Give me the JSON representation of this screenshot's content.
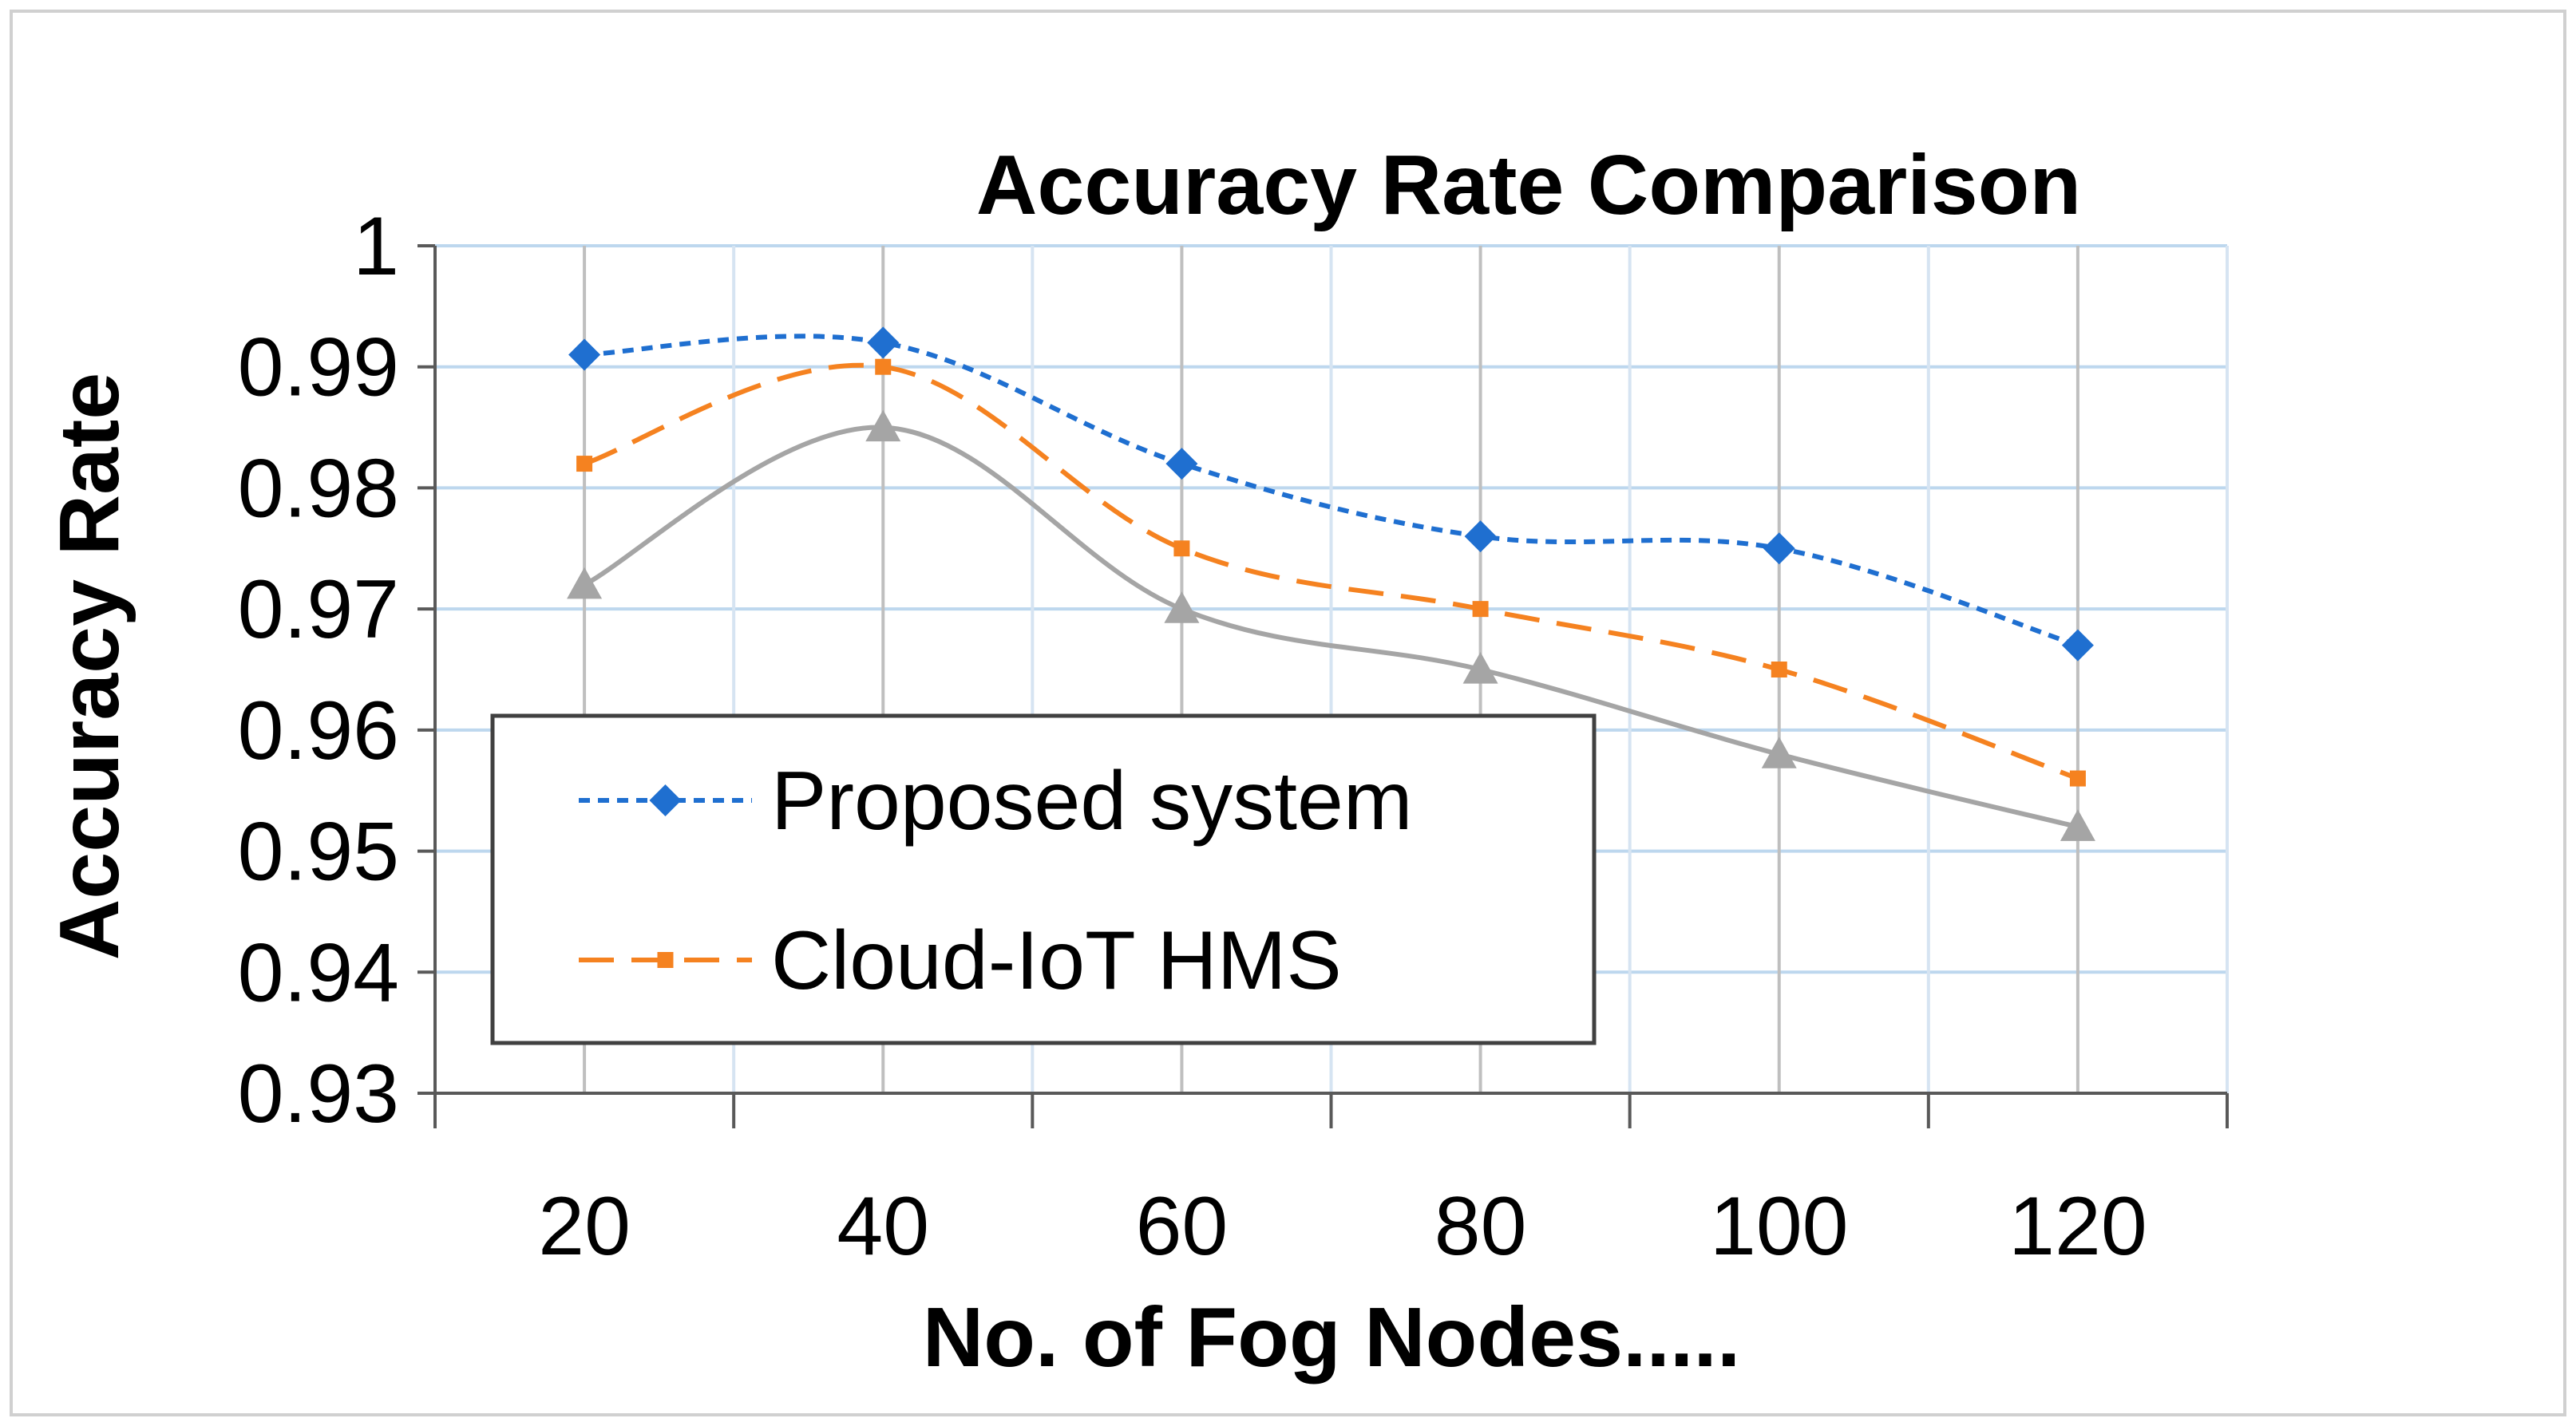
{
  "chart_data": {
    "type": "line",
    "title": "Accuracy Rate Comparison",
    "xlabel": "No. of Fog Nodes.....",
    "ylabel": "Accuracy Rate",
    "categories": [
      "20",
      "40",
      "60",
      "80",
      "100",
      "120"
    ],
    "ylim": [
      0.93,
      1
    ],
    "yticks": [
      "0.93",
      "0.94",
      "0.95",
      "0.96",
      "0.97",
      "0.98",
      "0.99",
      "1"
    ],
    "grid": true,
    "legend_position": "bottom-left",
    "series": [
      {
        "name": "Proposed system",
        "values": [
          0.991,
          0.992,
          0.982,
          0.976,
          0.975,
          0.967
        ],
        "color": "#1F6FD0",
        "marker": "diamond",
        "dash": "dotted",
        "in_legend": true
      },
      {
        "name": "Cloud-IoT HMS",
        "values": [
          0.982,
          0.99,
          0.975,
          0.97,
          0.965,
          0.956
        ],
        "color": "#F58220",
        "marker": "square",
        "dash": "dashed",
        "in_legend": true
      },
      {
        "name": "",
        "values": [
          0.972,
          0.985,
          0.97,
          0.965,
          0.958,
          0.952
        ],
        "color": "#A5A5A5",
        "marker": "triangle",
        "dash": "solid",
        "in_legend": false
      }
    ]
  }
}
